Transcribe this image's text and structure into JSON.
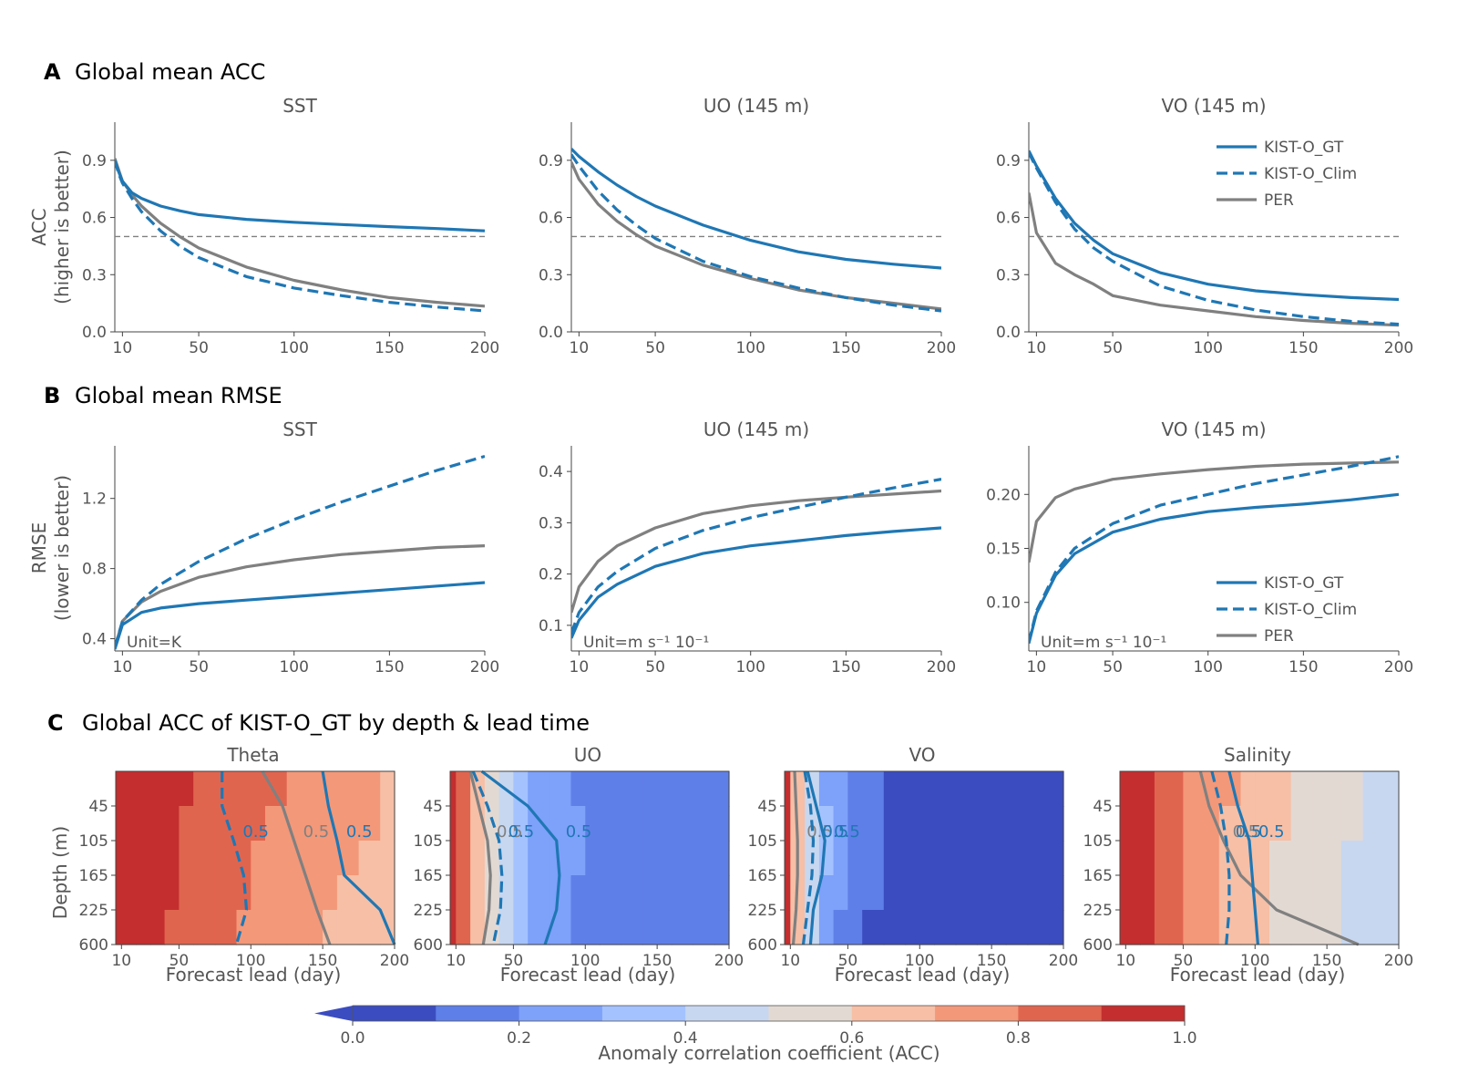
{
  "figure": {
    "panelA": {
      "letter": "A",
      "title": "Global mean ACC"
    },
    "panelB": {
      "letter": "B",
      "title": "Global mean RMSE"
    },
    "panelC": {
      "letter": "C",
      "title": "Global ACC of KIST-O_GT by depth & lead time"
    }
  },
  "colors": {
    "gt": "#1f77b4",
    "clim": "#1f77b4",
    "per": "#808080",
    "ref": "#808080"
  },
  "legend": [
    "KIST-O_GT",
    "KIST-O_Clim",
    "PER"
  ],
  "chart_data": [
    {
      "id": "acc_sst",
      "type": "line",
      "title": "SST",
      "ylabel": [
        "ACC",
        "(higher is better)"
      ],
      "xlim": [
        6,
        200
      ],
      "ylim": [
        0,
        1.1
      ],
      "xticks": [
        10,
        50,
        100,
        150,
        200
      ],
      "yticks": [
        0.0,
        0.3,
        0.6,
        0.9
      ],
      "ytick_labels": [
        "0.0",
        "0.3",
        "0.6",
        "0.9"
      ],
      "hline": 0.5,
      "x": [
        6,
        8,
        10,
        15,
        20,
        30,
        40,
        50,
        75,
        100,
        125,
        150,
        175,
        200
      ],
      "series": [
        {
          "name": "KIST-O_GT",
          "style": "solid",
          "values": [
            0.9,
            0.84,
            0.79,
            0.73,
            0.7,
            0.66,
            0.635,
            0.615,
            0.59,
            0.575,
            0.563,
            0.552,
            0.542,
            0.53
          ]
        },
        {
          "name": "KIST-O_Clim",
          "style": "dashed",
          "values": [
            0.9,
            0.83,
            0.78,
            0.7,
            0.63,
            0.53,
            0.45,
            0.39,
            0.29,
            0.23,
            0.19,
            0.155,
            0.13,
            0.11
          ]
        },
        {
          "name": "PER",
          "style": "solid",
          "values": [
            0.91,
            0.85,
            0.79,
            0.72,
            0.66,
            0.57,
            0.5,
            0.44,
            0.34,
            0.27,
            0.22,
            0.18,
            0.155,
            0.135
          ]
        }
      ]
    },
    {
      "id": "acc_uo",
      "type": "line",
      "title": "UO (145 m)",
      "xlim": [
        6,
        200
      ],
      "ylim": [
        0,
        1.1
      ],
      "xticks": [
        10,
        50,
        100,
        150,
        200
      ],
      "yticks": [
        0.0,
        0.3,
        0.6,
        0.9
      ],
      "ytick_labels": [
        "0.0",
        "0.3",
        "0.6",
        "0.9"
      ],
      "hline": 0.5,
      "x": [
        6,
        10,
        20,
        30,
        40,
        50,
        75,
        100,
        125,
        150,
        175,
        200
      ],
      "series": [
        {
          "name": "KIST-O_GT",
          "style": "solid",
          "values": [
            0.96,
            0.92,
            0.84,
            0.77,
            0.71,
            0.66,
            0.56,
            0.48,
            0.42,
            0.38,
            0.355,
            0.335
          ]
        },
        {
          "name": "KIST-O_Clim",
          "style": "dashed",
          "values": [
            0.93,
            0.87,
            0.74,
            0.64,
            0.56,
            0.49,
            0.37,
            0.29,
            0.23,
            0.18,
            0.14,
            0.11
          ]
        },
        {
          "name": "PER",
          "style": "solid",
          "values": [
            0.89,
            0.8,
            0.67,
            0.58,
            0.51,
            0.45,
            0.35,
            0.28,
            0.22,
            0.18,
            0.15,
            0.12
          ]
        }
      ]
    },
    {
      "id": "acc_vo",
      "type": "line",
      "title": "VO (145 m)",
      "xlim": [
        6,
        200
      ],
      "ylim": [
        0,
        1.1
      ],
      "xticks": [
        10,
        50,
        100,
        150,
        200
      ],
      "yticks": [
        0.0,
        0.3,
        0.6,
        0.9
      ],
      "ytick_labels": [
        "0.0",
        "0.3",
        "0.6",
        "0.9"
      ],
      "hline": 0.5,
      "legend": true,
      "x": [
        6,
        10,
        20,
        30,
        40,
        50,
        75,
        100,
        125,
        150,
        175,
        200
      ],
      "series": [
        {
          "name": "KIST-O_GT",
          "style": "solid",
          "values": [
            0.95,
            0.87,
            0.7,
            0.57,
            0.48,
            0.41,
            0.31,
            0.25,
            0.215,
            0.195,
            0.18,
            0.17
          ]
        },
        {
          "name": "KIST-O_Clim",
          "style": "dashed",
          "values": [
            0.94,
            0.86,
            0.68,
            0.54,
            0.44,
            0.37,
            0.24,
            0.165,
            0.115,
            0.08,
            0.055,
            0.04
          ]
        },
        {
          "name": "PER",
          "style": "solid",
          "values": [
            0.73,
            0.52,
            0.36,
            0.3,
            0.25,
            0.19,
            0.14,
            0.11,
            0.08,
            0.06,
            0.045,
            0.035
          ]
        }
      ]
    },
    {
      "id": "rmse_sst",
      "type": "line",
      "title": "SST",
      "ylabel": [
        "RMSE",
        "(lower is better)"
      ],
      "unit": "Unit=K",
      "xlim": [
        6,
        200
      ],
      "ylim": [
        0.33,
        1.5
      ],
      "xticks": [
        10,
        50,
        100,
        150,
        200
      ],
      "yticks": [
        0.4,
        0.8,
        1.2
      ],
      "ytick_labels": [
        "0.4",
        "0.8",
        "1.2"
      ],
      "x": [
        6,
        10,
        20,
        30,
        50,
        75,
        100,
        125,
        150,
        175,
        200
      ],
      "series": [
        {
          "name": "KIST-O_GT",
          "style": "solid",
          "values": [
            0.34,
            0.48,
            0.55,
            0.575,
            0.6,
            0.62,
            0.64,
            0.66,
            0.68,
            0.7,
            0.72
          ]
        },
        {
          "name": "KIST-O_Clim",
          "style": "dashed",
          "values": [
            0.35,
            0.5,
            0.62,
            0.71,
            0.84,
            0.97,
            1.08,
            1.18,
            1.27,
            1.36,
            1.44
          ]
        },
        {
          "name": "PER",
          "style": "solid",
          "values": [
            0.35,
            0.5,
            0.61,
            0.67,
            0.75,
            0.81,
            0.85,
            0.88,
            0.9,
            0.92,
            0.93
          ]
        }
      ]
    },
    {
      "id": "rmse_uo",
      "type": "line",
      "title": "UO (145 m)",
      "unit": "Unit=m s⁻¹ 10⁻¹",
      "xlim": [
        6,
        200
      ],
      "ylim": [
        0.05,
        0.45
      ],
      "xticks": [
        10,
        50,
        100,
        150,
        200
      ],
      "yticks": [
        0.1,
        0.2,
        0.3,
        0.4
      ],
      "ytick_labels": [
        "0.1",
        "0.2",
        "0.3",
        "0.4"
      ],
      "x": [
        6,
        10,
        20,
        30,
        50,
        75,
        100,
        125,
        150,
        175,
        200
      ],
      "series": [
        {
          "name": "KIST-O_GT",
          "style": "solid",
          "values": [
            0.075,
            0.11,
            0.155,
            0.18,
            0.215,
            0.24,
            0.255,
            0.265,
            0.275,
            0.283,
            0.29
          ]
        },
        {
          "name": "KIST-O_Clim",
          "style": "dashed",
          "values": [
            0.085,
            0.125,
            0.175,
            0.205,
            0.25,
            0.285,
            0.31,
            0.33,
            0.35,
            0.368,
            0.385
          ]
        },
        {
          "name": "PER",
          "style": "solid",
          "values": [
            0.125,
            0.175,
            0.225,
            0.255,
            0.29,
            0.318,
            0.333,
            0.343,
            0.35,
            0.356,
            0.362
          ]
        }
      ]
    },
    {
      "id": "rmse_vo",
      "type": "line",
      "title": "VO (145 m)",
      "unit": "Unit=m s⁻¹ 10⁻¹",
      "xlim": [
        6,
        200
      ],
      "ylim": [
        0.055,
        0.245
      ],
      "xticks": [
        10,
        50,
        100,
        150,
        200
      ],
      "yticks": [
        0.1,
        0.15,
        0.2
      ],
      "ytick_labels": [
        "0.10",
        "0.15",
        "0.20"
      ],
      "legend": true,
      "x": [
        6,
        10,
        20,
        30,
        50,
        75,
        100,
        125,
        150,
        175,
        200
      ],
      "series": [
        {
          "name": "KIST-O_GT",
          "style": "solid",
          "values": [
            0.062,
            0.09,
            0.125,
            0.145,
            0.165,
            0.177,
            0.184,
            0.188,
            0.191,
            0.195,
            0.2
          ]
        },
        {
          "name": "KIST-O_Clim",
          "style": "dashed",
          "values": [
            0.063,
            0.092,
            0.128,
            0.15,
            0.173,
            0.19,
            0.2,
            0.21,
            0.218,
            0.226,
            0.235
          ]
        },
        {
          "name": "PER",
          "style": "solid",
          "values": [
            0.137,
            0.175,
            0.197,
            0.205,
            0.214,
            0.219,
            0.223,
            0.226,
            0.228,
            0.229,
            0.23
          ]
        }
      ]
    },
    {
      "id": "acc_depth",
      "type": "heatmap",
      "x": [
        6,
        10,
        20,
        30,
        40,
        50,
        60,
        75,
        90,
        100,
        110,
        125,
        140,
        150,
        160,
        175,
        190,
        200
      ],
      "xlim": [
        6,
        200
      ],
      "xticks": [
        10,
        50,
        100,
        150,
        200
      ],
      "xlabel": "Forecast lead (day)",
      "ylabel": "Depth (m)",
      "depth_ticks": [
        "45",
        "105",
        "165",
        "225",
        "600"
      ],
      "depth_levels": [
        0,
        45,
        105,
        165,
        225,
        600
      ],
      "levels": [
        0.0,
        0.1,
        0.2,
        0.3,
        0.4,
        0.5,
        0.6,
        0.7,
        0.8,
        0.9,
        1.0
      ],
      "colormap": [
        "#3b4cc0",
        "#5f7fe8",
        "#7ea1fa",
        "#a4c2fe",
        "#c7d7f0",
        "#e3d9d3",
        "#f6bfa6",
        "#f39879",
        "#e0654f",
        "#c42e2e"
      ],
      "colorbar": {
        "ticks": [
          "0.0",
          "0.2",
          "0.4",
          "0.6",
          "0.8",
          "1.0"
        ],
        "label": "Anomaly correlation coefficient (ACC)"
      },
      "contour_label": "0.5",
      "panels": [
        {
          "title": "Theta",
          "decay": 320,
          "floor": 0.34,
          "gt50": [
            150,
            154,
            160,
            165,
            190,
            235
          ],
          "clim50": [
            80,
            80,
            88,
            95,
            97,
            90
          ],
          "per50": [
            108,
            122,
            130,
            138,
            146,
            155
          ]
        },
        {
          "title": "UO",
          "decay": 38,
          "floor": 0.12,
          "gt50": [
            28,
            60,
            80,
            82,
            80,
            72
          ],
          "clim50": [
            22,
            32,
            40,
            42,
            41,
            36
          ],
          "per50": [
            20,
            26,
            32,
            34,
            33,
            29
          ]
        },
        {
          "title": "VO",
          "decay": 22,
          "floor": 0.05,
          "gt50": [
            22,
            28,
            34,
            32,
            26,
            24
          ],
          "clim50": [
            20,
            24,
            26,
            25,
            22,
            19
          ],
          "per50": [
            13,
            14,
            15,
            15,
            14,
            12
          ]
        },
        {
          "title": "Salinity",
          "decay": 150,
          "floor": 0.27,
          "gt50": [
            82,
            88,
            96,
            98,
            100,
            102
          ],
          "clim50": [
            70,
            76,
            80,
            82,
            82,
            80
          ],
          "per50": [
            62,
            68,
            78,
            90,
            115,
            172
          ]
        }
      ]
    }
  ]
}
